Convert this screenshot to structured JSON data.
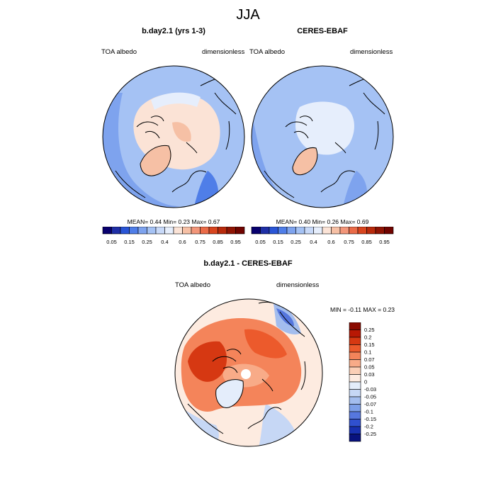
{
  "title": "JJA",
  "chart_data": [
    {
      "type": "heatmap",
      "projection": "north-polar-stereographic",
      "title": "b.day2.1 (yrs 1-3)",
      "variable": "TOA albedo",
      "units": "dimensionless",
      "stats": {
        "mean": 0.44,
        "min": 0.23,
        "max": 0.67
      },
      "stats_text": "MEAN=   0.44  Min=   0.23  Max=   0.67",
      "colorbar": {
        "levels": [
          0.05,
          0.1,
          0.15,
          0.2,
          0.25,
          0.3,
          0.35,
          0.4,
          0.5,
          0.6,
          0.7,
          0.75,
          0.8,
          0.85,
          0.9,
          0.95
        ],
        "tick_labels": [
          "0.05",
          "0.15",
          "0.25",
          "0.4",
          "0.6",
          "0.75",
          "0.85",
          "0.95"
        ],
        "colors": [
          "#08006e",
          "#1f2fa6",
          "#2a55d6",
          "#4f7ee8",
          "#7ea3ee",
          "#a5c2f4",
          "#c8d9f8",
          "#e6eefc",
          "#fbe3d6",
          "#f6c0a5",
          "#f2967a",
          "#ea6b48",
          "#d8451f",
          "#b82a0c",
          "#8f1404",
          "#700400"
        ]
      },
      "field": {
        "background": 0.3,
        "regions": [
          {
            "name": "arctic-ocean-ice",
            "value": 0.5
          },
          {
            "name": "greenland",
            "value": 0.65
          },
          {
            "name": "siberia-cloud",
            "value": 0.4
          },
          {
            "name": "subpolar-ocean",
            "value": 0.3
          }
        ]
      }
    },
    {
      "type": "heatmap",
      "projection": "north-polar-stereographic",
      "title": "CERES-EBAF",
      "variable": "TOA albedo",
      "units": "dimensionless",
      "stats": {
        "mean": 0.4,
        "min": 0.26,
        "max": 0.69
      },
      "stats_text": "MEAN=   0.40  Min=   0.26  Max=   0.69",
      "colorbar": {
        "levels": [
          0.05,
          0.1,
          0.15,
          0.2,
          0.25,
          0.3,
          0.35,
          0.4,
          0.5,
          0.6,
          0.7,
          0.75,
          0.8,
          0.85,
          0.9,
          0.95
        ],
        "tick_labels": [
          "0.05",
          "0.15",
          "0.25",
          "0.4",
          "0.6",
          "0.75",
          "0.85",
          "0.95"
        ],
        "colors": [
          "#08006e",
          "#1f2fa6",
          "#2a55d6",
          "#4f7ee8",
          "#7ea3ee",
          "#a5c2f4",
          "#c8d9f8",
          "#e6eefc",
          "#fbe3d6",
          "#f6c0a5",
          "#f2967a",
          "#ea6b48",
          "#d8451f",
          "#b82a0c",
          "#8f1404",
          "#700400"
        ]
      },
      "field": {
        "background": 0.3,
        "regions": [
          {
            "name": "arctic-ocean-ice",
            "value": 0.45
          },
          {
            "name": "greenland",
            "value": 0.65
          },
          {
            "name": "subpolar-ocean",
            "value": 0.3
          }
        ]
      }
    },
    {
      "type": "heatmap",
      "projection": "north-polar-stereographic",
      "title": "b.day2.1 - CERES-EBAF",
      "variable": "TOA albedo",
      "units": "dimensionless",
      "stats": {
        "min": -0.11,
        "max": 0.23
      },
      "stats_text": "MIN =  -0.11 MAX =   0.23",
      "colorbar": {
        "orientation": "vertical",
        "tick_labels": [
          "0.25",
          "0.2",
          "0.15",
          "0.1",
          "0.07",
          "0.05",
          "0.03",
          "0",
          "-0.03",
          "-0.05",
          "-0.07",
          "-0.1",
          "-0.15",
          "-0.2",
          "-0.25"
        ],
        "colors": [
          "#8b0a00",
          "#b81804",
          "#d63812",
          "#ec5a2c",
          "#f4845a",
          "#f8ab88",
          "#fbcfb6",
          "#fdebe0",
          "#e4edfb",
          "#c6d7f5",
          "#a3bdee",
          "#7d9fe8",
          "#5677de",
          "#3050cf",
          "#1830b0",
          "#08127e"
        ]
      },
      "field": {
        "background": 0.0,
        "regions": [
          {
            "name": "siberia-positive",
            "value": 0.15
          },
          {
            "name": "arctic-ocean-positive",
            "value": 0.08
          },
          {
            "name": "north-pole",
            "value": 0.0
          },
          {
            "name": "greenland-negative",
            "value": -0.03
          },
          {
            "name": "bering-negative",
            "value": -0.1
          },
          {
            "name": "atlantic-slightly-negative",
            "value": -0.03
          }
        ]
      }
    }
  ]
}
